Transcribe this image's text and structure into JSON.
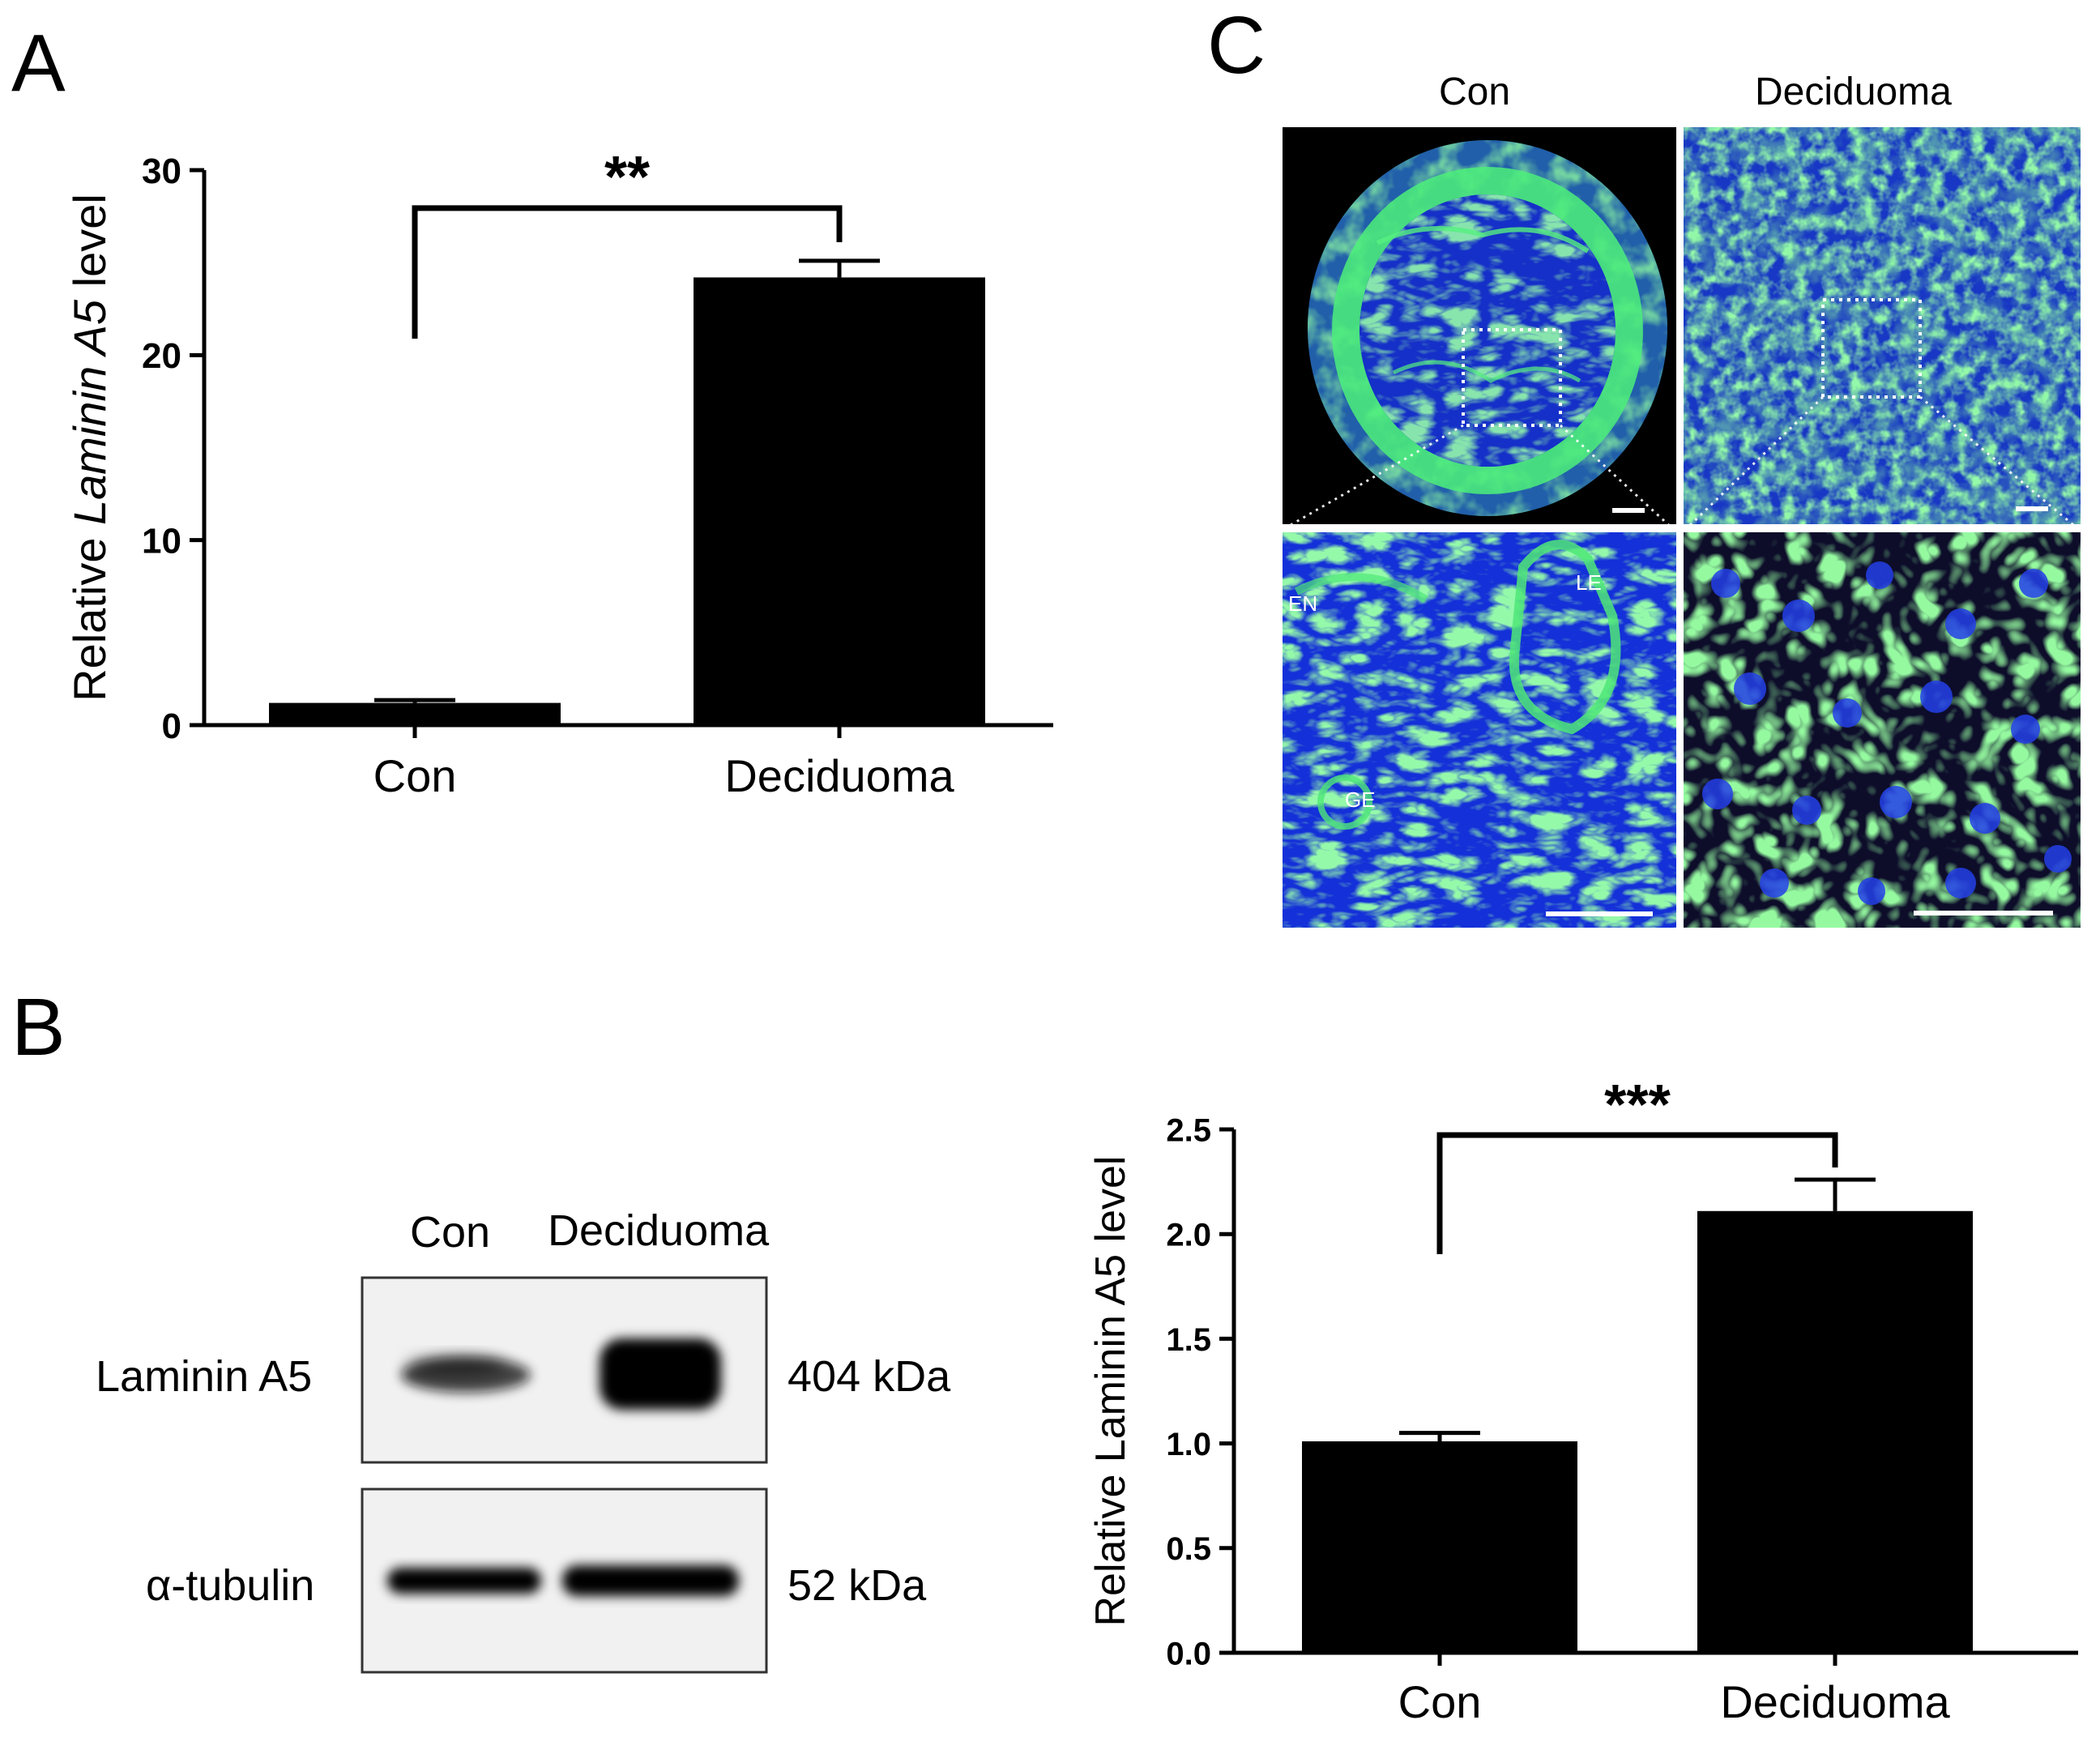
{
  "panels": {
    "a": {
      "letter": "A"
    },
    "b": {
      "letter": "B"
    },
    "c": {
      "letter": "C"
    }
  },
  "chart_data": [
    {
      "panel": "A",
      "type": "bar",
      "categories": [
        "Con",
        "Deciduoma"
      ],
      "values": [
        1.2,
        24.2
      ],
      "errors": [
        0.15,
        0.9
      ],
      "ylabel_prefix": "Relative ",
      "ylabel_italic": "Laminin A5",
      "ylabel_suffix": " level",
      "ylim": [
        0,
        30
      ],
      "yticks": [
        0,
        10,
        20,
        30
      ],
      "ytick_labels": [
        "0",
        "10",
        "20",
        "30"
      ],
      "significance": "**",
      "bar_color": "#000000"
    },
    {
      "panel": "B",
      "type": "bar",
      "categories": [
        "Con",
        "Deciduoma"
      ],
      "values": [
        1.01,
        2.11
      ],
      "errors": [
        0.04,
        0.15
      ],
      "ylabel": "Relative Laminin A5 level",
      "ylim": [
        0,
        2.5
      ],
      "yticks": [
        0,
        0.5,
        1.0,
        1.5,
        2.0,
        2.5
      ],
      "ytick_labels": [
        "0.0",
        "0.5",
        "1.0",
        "1.5",
        "2.0",
        "2.5"
      ],
      "significance": "***",
      "bar_color": "#000000"
    }
  ],
  "western_blot": {
    "lane_labels": [
      "Con",
      "Deciduoma"
    ],
    "rows": [
      {
        "protein": "Laminin A5",
        "size": "404 kDa"
      },
      {
        "protein": "α-tubulin",
        "size": "52 kDa"
      }
    ]
  },
  "micrographs": {
    "column_headers": [
      "Con",
      "Deciduoma"
    ],
    "region_labels": [
      "EN",
      "LE",
      "GE"
    ]
  },
  "colors": {
    "stain_green": "#3fe05a",
    "stain_blue": "#1a3cf0",
    "background_dark": "#000000"
  }
}
